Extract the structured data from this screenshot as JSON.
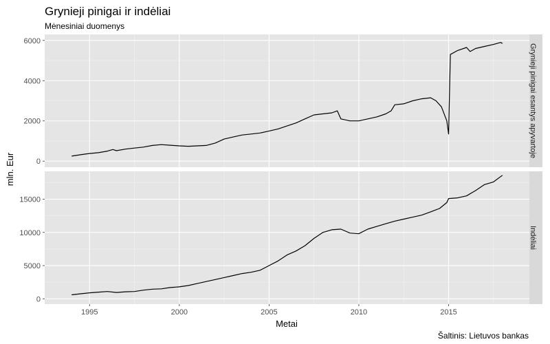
{
  "chart_data": {
    "type": "line",
    "title": "Grynieji pinigai ir indėliai",
    "subtitle": "Mėnesiniai duomenys",
    "xlabel": "Metai",
    "ylabel": "mln. Eur",
    "caption": "Šaltinis: Lietuvos bankas",
    "grid": true,
    "xlim": [
      1992.5,
      2019.5
    ],
    "x_ticks": [
      1995,
      2000,
      2005,
      2010,
      2015
    ],
    "x_tick_labels": [
      "1995",
      "2000",
      "2005",
      "2010",
      "2015"
    ],
    "panels": [
      {
        "strip": "Grynieji pinigai esantys apyvartoje",
        "ylim": [
          -300,
          6300
        ],
        "y_ticks": [
          0,
          2000,
          4000,
          6000
        ],
        "y_tick_labels": [
          "0",
          "2000",
          "4000",
          "6000"
        ],
        "series": [
          {
            "x": [
              1994.0,
              1994.5,
              1995.0,
              1995.5,
              1996.0,
              1996.3,
              1996.5,
              1997.0,
              1997.5,
              1998.0,
              1998.5,
              1999.0,
              1999.5,
              2000.0,
              2000.5,
              2001.0,
              2001.5,
              2002.0,
              2002.5,
              2003.0,
              2003.5,
              2004.0,
              2004.5,
              2005.0,
              2005.5,
              2006.0,
              2006.5,
              2007.0,
              2007.5,
              2008.0,
              2008.5,
              2008.8,
              2009.0,
              2009.5,
              2010.0,
              2010.5,
              2011.0,
              2011.5,
              2011.8,
              2012.0,
              2012.5,
              2013.0,
              2013.5,
              2014.0,
              2014.3,
              2014.6,
              2014.9,
              2015.0,
              2015.1,
              2015.5,
              2016.0,
              2016.2,
              2016.5,
              2017.0,
              2017.5,
              2017.9,
              2018.0
            ],
            "y": [
              250,
              320,
              380,
              420,
              500,
              580,
              520,
              600,
              650,
              700,
              780,
              820,
              790,
              760,
              740,
              760,
              780,
              900,
              1100,
              1200,
              1300,
              1350,
              1400,
              1500,
              1600,
              1750,
              1900,
              2100,
              2300,
              2350,
              2400,
              2500,
              2100,
              2000,
              2000,
              2100,
              2200,
              2350,
              2500,
              2800,
              2850,
              3000,
              3100,
              3150,
              3000,
              2700,
              2000,
              1350,
              5300,
              5500,
              5650,
              5450,
              5600,
              5700,
              5800,
              5900,
              5850
            ]
          }
        ]
      },
      {
        "strip": "Indėliai",
        "ylim": [
          -800,
          19200
        ],
        "y_ticks": [
          0,
          5000,
          10000,
          15000
        ],
        "y_tick_labels": [
          "0",
          "5000",
          "10000",
          "15000"
        ],
        "series": [
          {
            "x": [
              1994.0,
              1994.5,
              1995.0,
              1995.5,
              1996.0,
              1996.5,
              1997.0,
              1997.5,
              1998.0,
              1998.5,
              1999.0,
              1999.5,
              2000.0,
              2000.5,
              2001.0,
              2001.5,
              2002.0,
              2002.5,
              2003.0,
              2003.5,
              2004.0,
              2004.5,
              2005.0,
              2005.5,
              2006.0,
              2006.5,
              2007.0,
              2007.5,
              2008.0,
              2008.5,
              2009.0,
              2009.5,
              2010.0,
              2010.5,
              2011.0,
              2011.5,
              2012.0,
              2012.5,
              2013.0,
              2013.5,
              2014.0,
              2014.5,
              2014.9,
              2015.0,
              2015.5,
              2016.0,
              2016.5,
              2017.0,
              2017.5,
              2017.9,
              2018.0
            ],
            "y": [
              600,
              750,
              900,
              1000,
              1100,
              950,
              1050,
              1100,
              1300,
              1450,
              1500,
              1700,
              1800,
              2000,
              2300,
              2600,
              2900,
              3200,
              3500,
              3800,
              4000,
              4300,
              5000,
              5700,
              6600,
              7200,
              8000,
              9100,
              10000,
              10400,
              10500,
              9900,
              9800,
              10500,
              10900,
              11300,
              11700,
              12000,
              12300,
              12600,
              13100,
              13600,
              14500,
              15100,
              15200,
              15500,
              16300,
              17200,
              17600,
              18400,
              18600
            ]
          }
        ]
      }
    ]
  }
}
